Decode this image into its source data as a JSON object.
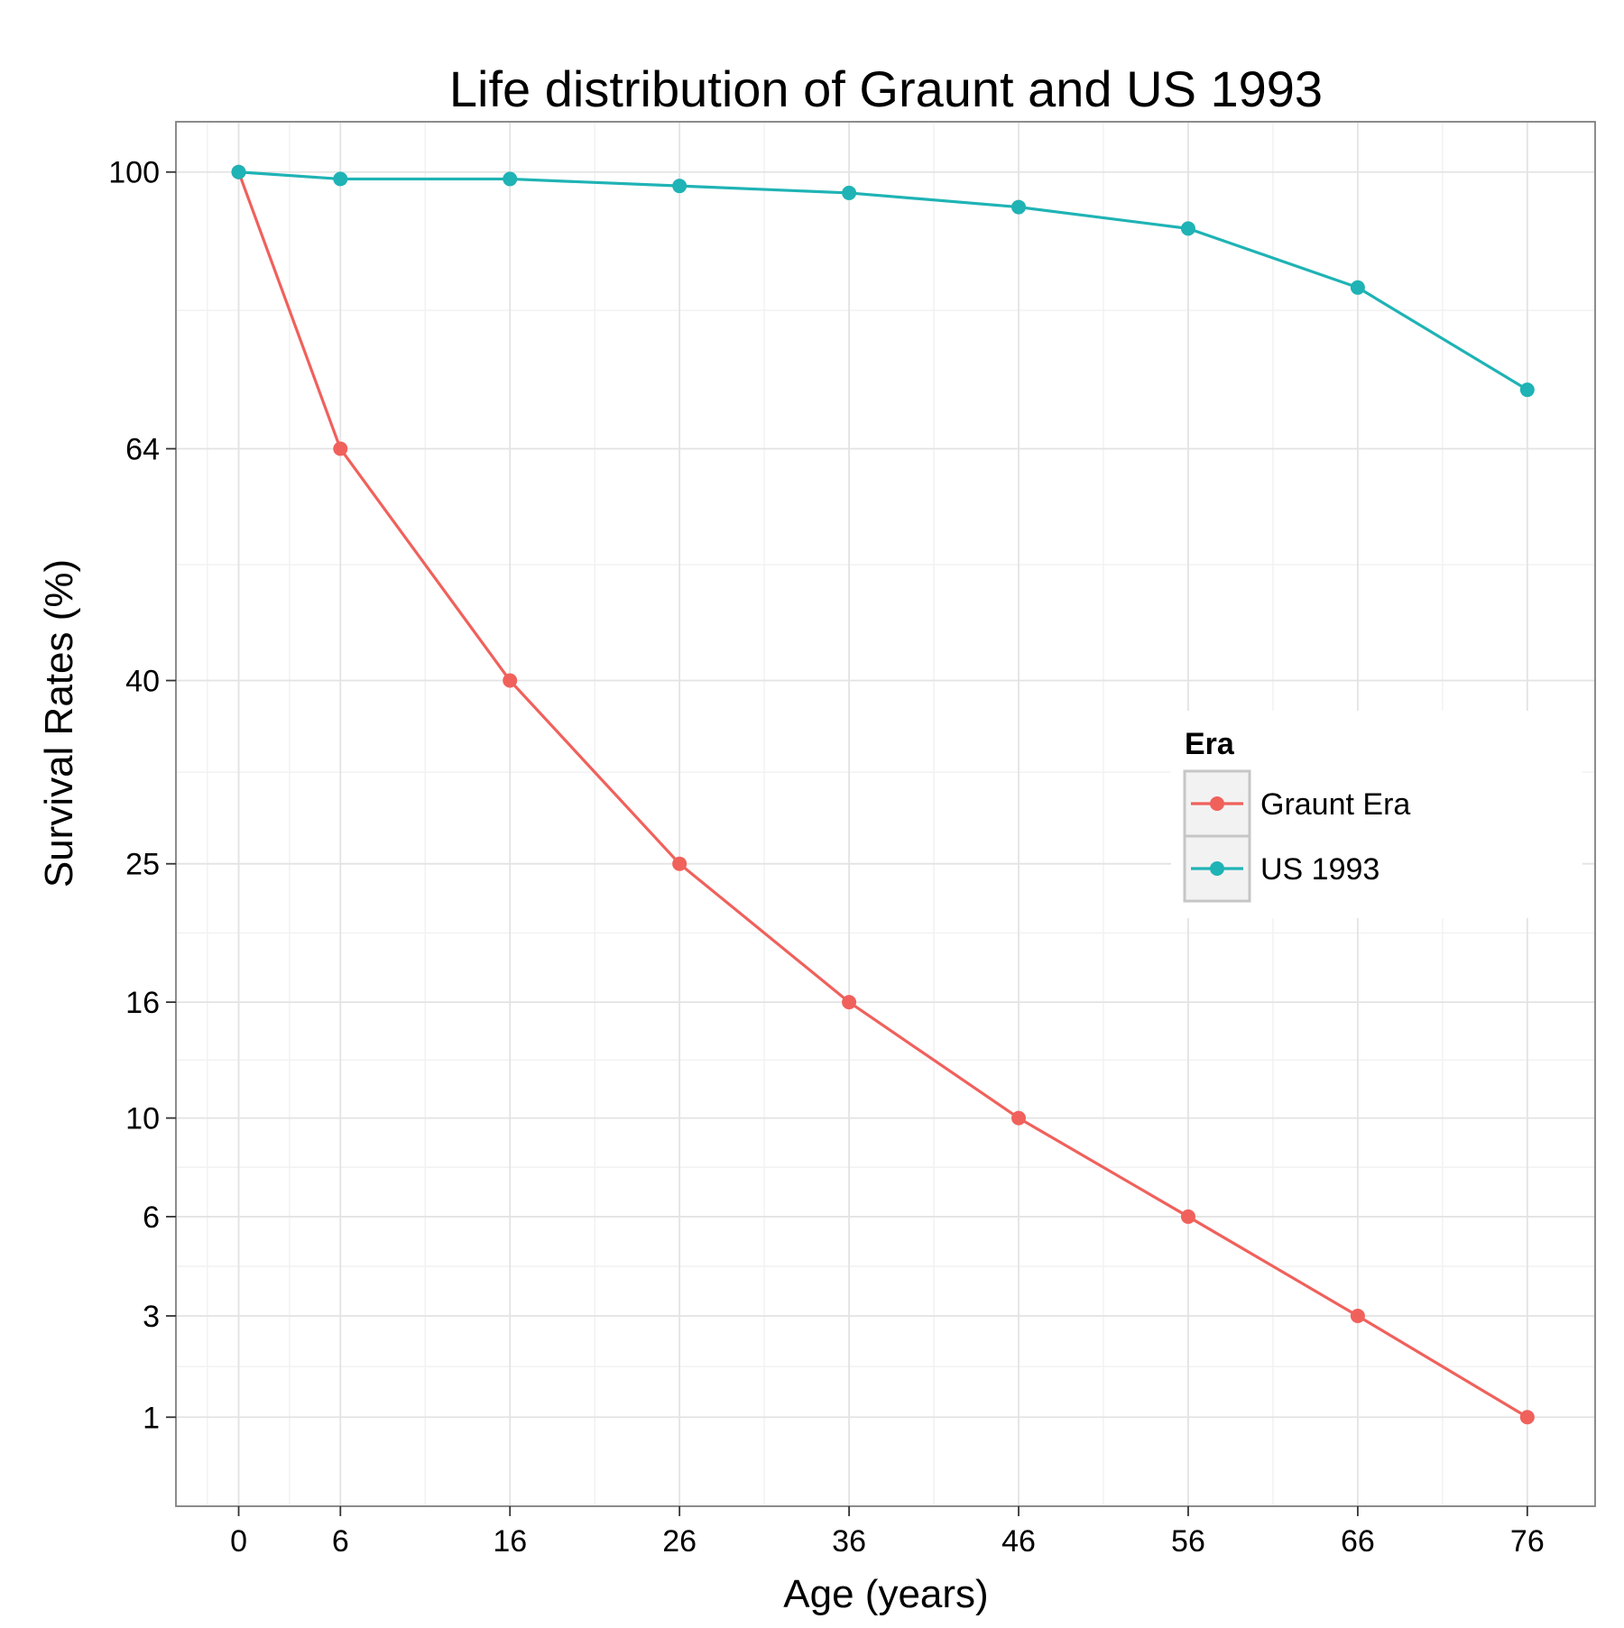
{
  "chart_data": {
    "type": "line",
    "title": "Life distribution of Graunt and US 1993",
    "xlabel": "Age (years)",
    "ylabel": "Survival Rates (%)",
    "x": [
      0,
      6,
      16,
      26,
      36,
      46,
      56,
      66,
      76
    ],
    "x_ticks": [
      "0",
      "6",
      "16",
      "26",
      "36",
      "46",
      "56",
      "66",
      "76"
    ],
    "y_ticks": [
      1,
      3,
      6,
      10,
      16,
      25,
      40,
      64,
      100
    ],
    "y_scale": "sqrt",
    "xlim": [
      -3.7,
      80
    ],
    "ylim": [
      0.127,
      107.4
    ],
    "grid": true,
    "legend": {
      "title": "Era",
      "placement": "inside-right"
    },
    "series": [
      {
        "name": "Graunt Era",
        "color": "#F0615C",
        "values": [
          100,
          64,
          40,
          25,
          16,
          10,
          6,
          3,
          1
        ]
      },
      {
        "name": "US 1993",
        "color": "#1FB3B5",
        "values": [
          100,
          99,
          99,
          98,
          97,
          95,
          92,
          84,
          71
        ]
      }
    ]
  }
}
